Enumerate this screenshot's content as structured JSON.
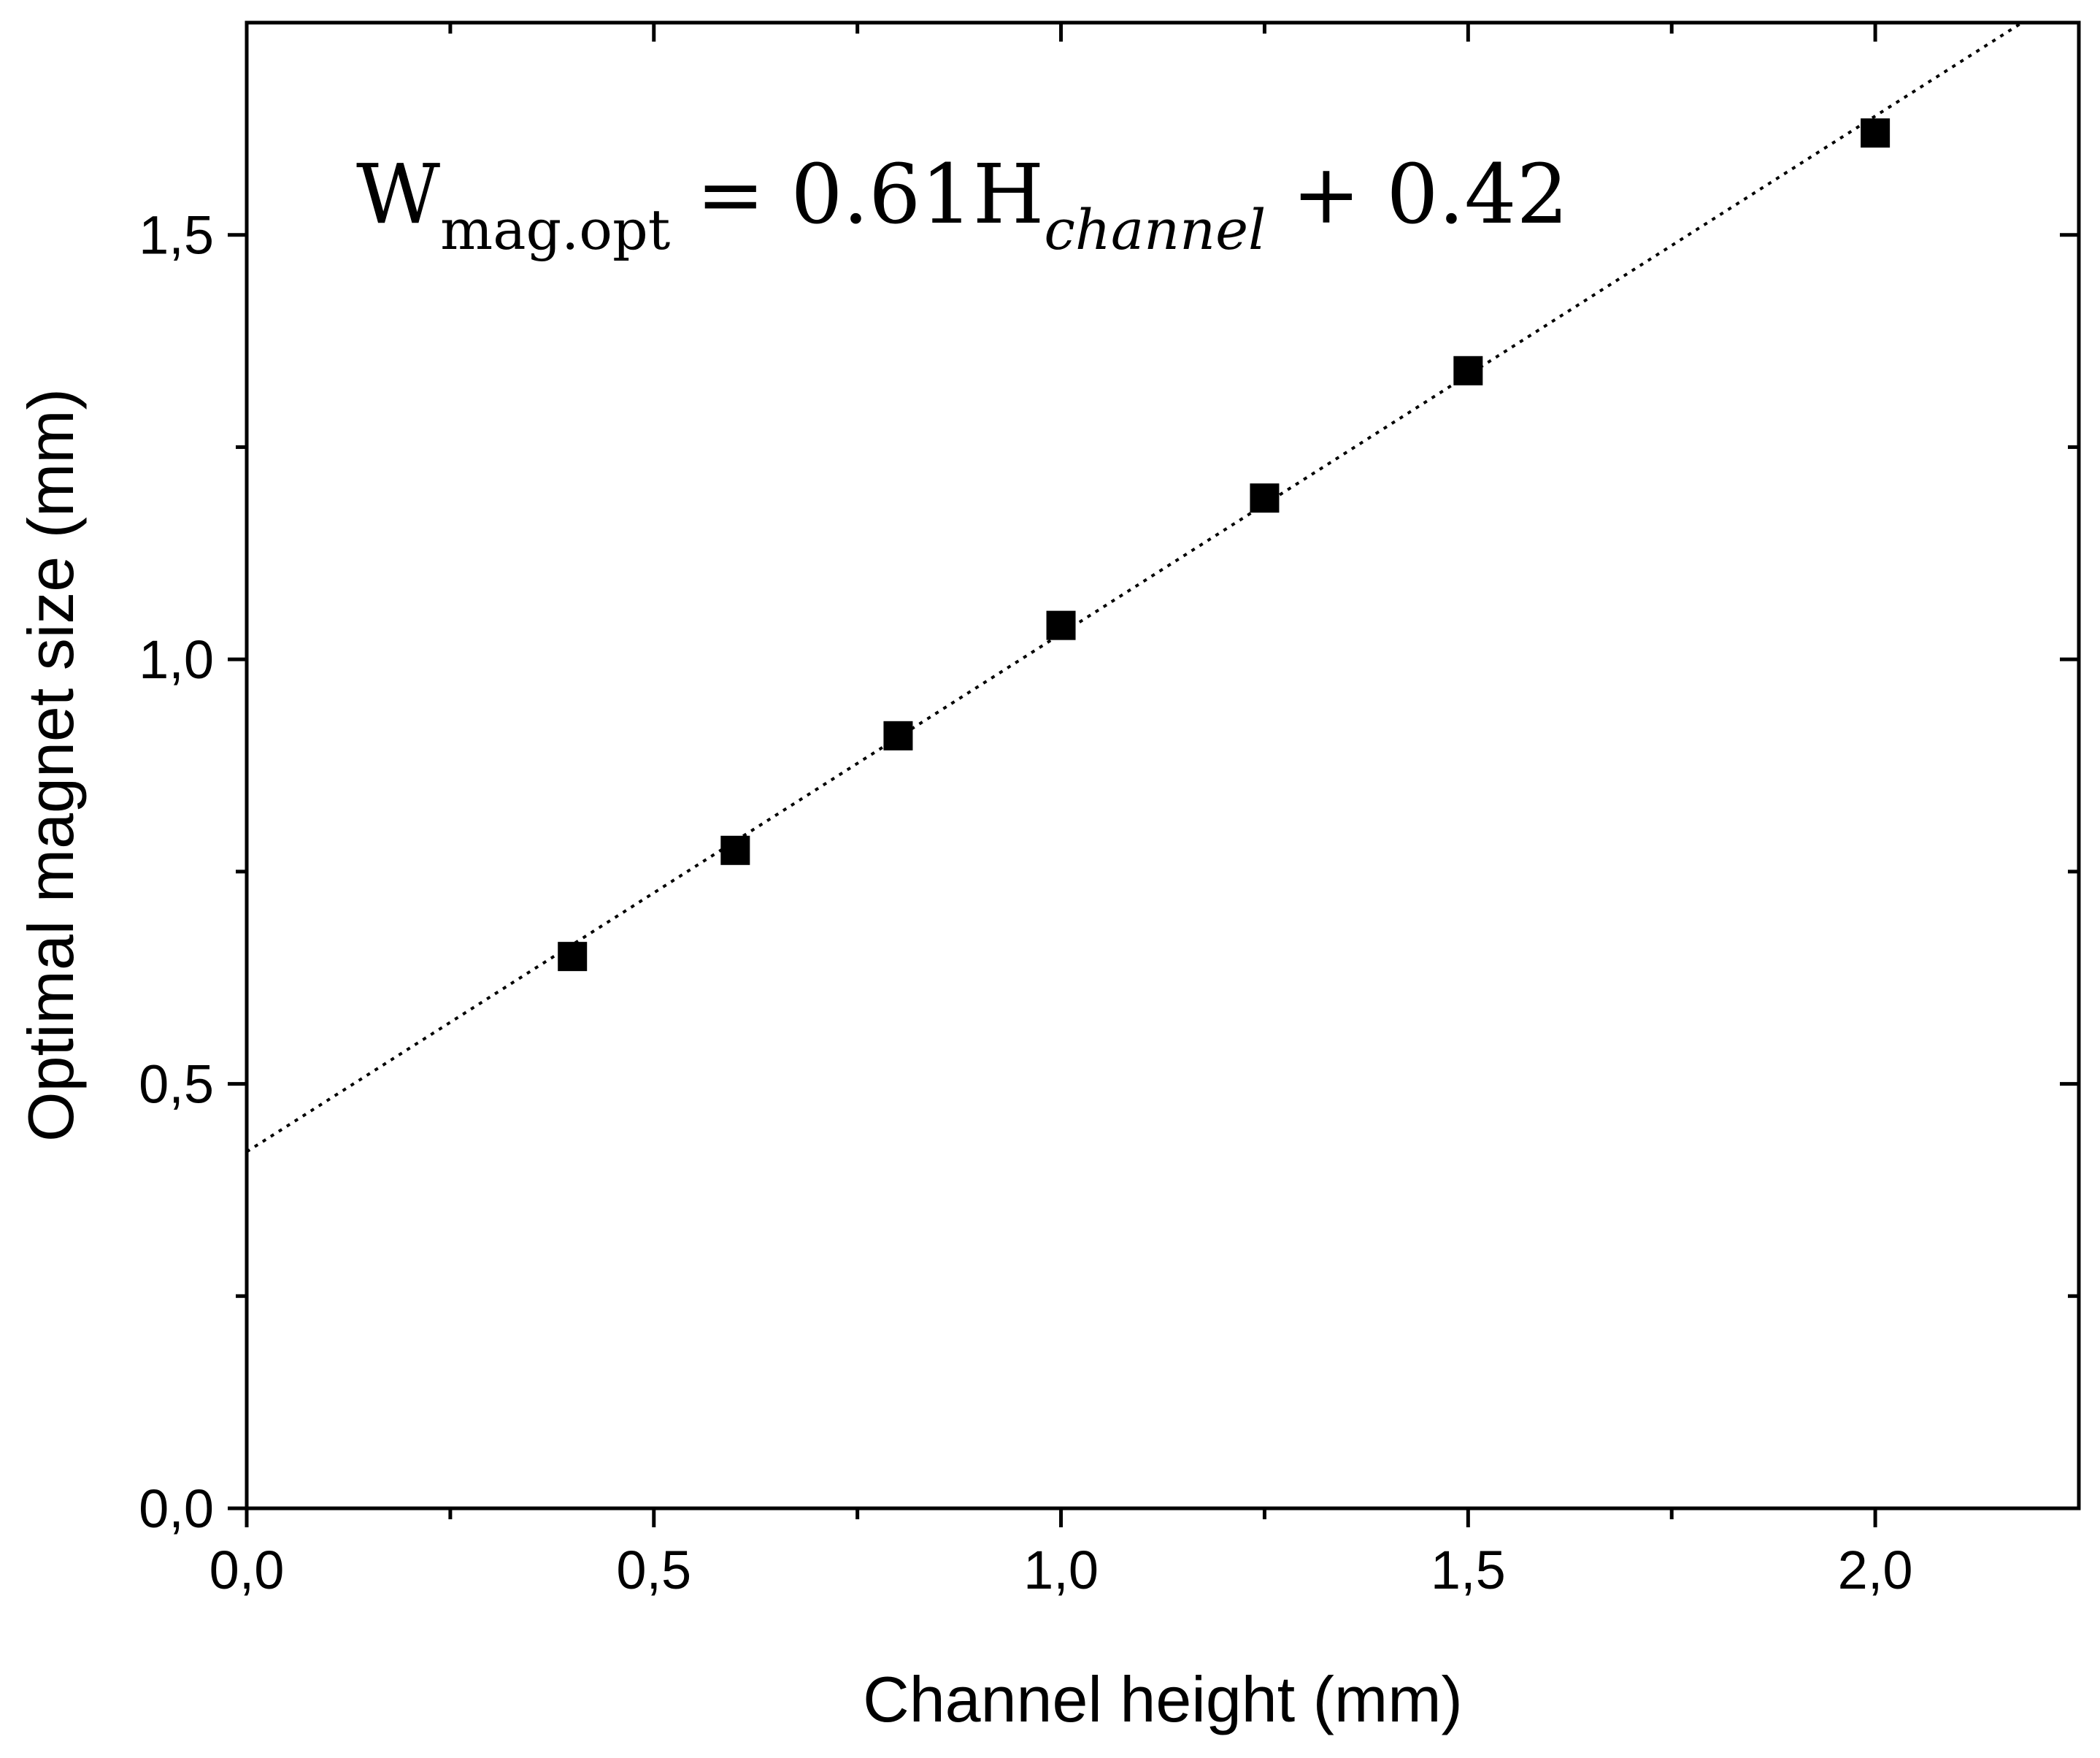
{
  "chart_data": {
    "type": "scatter",
    "xlabel": "Channel height (mm)",
    "ylabel": "Optimal magnet size (mm)",
    "xlim": [
      0,
      2.25
    ],
    "ylim": [
      0,
      1.75
    ],
    "x_ticks": [
      "0,0",
      "0,5",
      "1,0",
      "1,5",
      "2,0"
    ],
    "y_ticks": [
      "0,0",
      "0,5",
      "1,0",
      "1,5"
    ],
    "x_tick_values": [
      0,
      0.5,
      1.0,
      1.5,
      2.0
    ],
    "y_tick_values": [
      0,
      0.5,
      1.0,
      1.5
    ],
    "x_minor_tick_values": [
      0.25,
      0.75,
      1.25,
      1.75
    ],
    "y_minor_tick_values": [
      0.25,
      0.75,
      1.25
    ],
    "series": [
      {
        "marker": "square",
        "color": "#000000",
        "x": [
          0.4,
          0.6,
          0.8,
          1.0,
          1.25,
          1.5,
          2.0
        ],
        "y": [
          0.65,
          0.775,
          0.91,
          1.04,
          1.19,
          1.34,
          1.62
        ]
      }
    ],
    "fit_line": {
      "style": "dotted",
      "color": "#000000",
      "slope": 0.61,
      "intercept": 0.42
    },
    "annotation": {
      "main": "W",
      "subscript": "mag.opt",
      "middle": " = 0.61H",
      "subscript_italic": "channel",
      "end": " + 0.42"
    },
    "grid": false,
    "legend": "none"
  }
}
